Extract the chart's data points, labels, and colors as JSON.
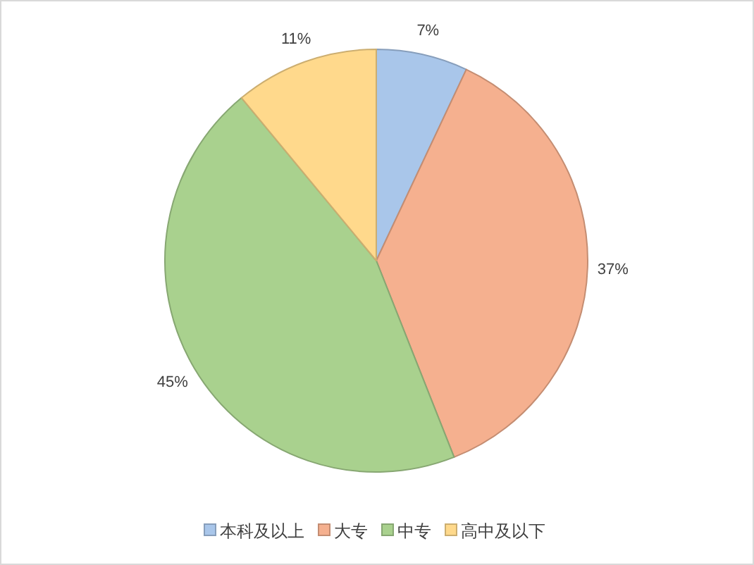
{
  "chart_data": {
    "type": "pie",
    "categories": [
      "本科及以上",
      "大专",
      "中专",
      "高中及以下"
    ],
    "values": [
      7,
      37,
      45,
      11
    ],
    "colors": [
      "#a9c6ea",
      "#f5b08f",
      "#a9d18e",
      "#ffd98c"
    ],
    "value_labels": [
      "7%",
      "37%",
      "45%",
      "11%"
    ],
    "legend": "bottom"
  }
}
